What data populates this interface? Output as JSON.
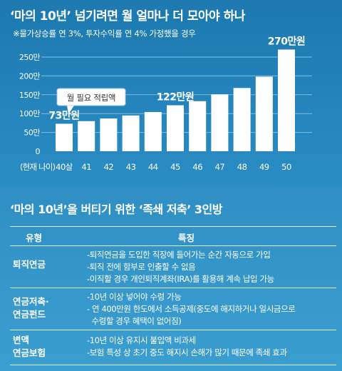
{
  "header": {
    "title": "‘마의 10년’ 넘기려면 월 얼마나 더 모아야 하나",
    "subtitle": "※물가상승률 연 3%, 투자수익률 연 4% 가정했을 경우"
  },
  "chart_data": {
    "type": "bar",
    "x_axis_label": "(현재 나이)",
    "categories": [
      "40살",
      "41",
      "42",
      "43",
      "44",
      "45",
      "46",
      "47",
      "48",
      "49",
      "50"
    ],
    "values": [
      73,
      80,
      87,
      95,
      104,
      122,
      133,
      151,
      168,
      198,
      270
    ],
    "y_ticks": [
      "0",
      "50만",
      "100만",
      "150만",
      "200만",
      "250만"
    ],
    "y_tick_values": [
      0,
      50,
      100,
      150,
      200,
      250
    ],
    "ylim": [
      0,
      290
    ],
    "data_labels": [
      {
        "index": 0,
        "text": "73만원"
      },
      {
        "index": 5,
        "text": "122만원"
      },
      {
        "index": 10,
        "text": "270만원"
      }
    ],
    "callout": "월 필요 적립액",
    "grid": true,
    "colors": {
      "bar": "#ffffff",
      "grid": "#7fbde2"
    }
  },
  "section": {
    "title": "‘마의 10년’을 버티기 위한 ‘족쇄 저축’ 3인방",
    "headers": {
      "type": "유형",
      "features": "특징"
    },
    "rows": [
      {
        "type": [
          "퇴직연금"
        ],
        "features": [
          "-퇴직연금을 도입한 직장에 들어가는 순간 자동으로 가입",
          "-퇴직 전에 함부로 인출할 수 없음",
          "-이직할 경우 개인퇴직계좌(IRA)를 활용해 계속 납입 가능"
        ]
      },
      {
        "type": [
          "연금저축·",
          "연금펀드"
        ],
        "features": [
          "-10년 이상 넣어야 수령 가능",
          "- 연 400만원 한도에서 소득공제(중도에 해지하거나 일시금으로",
          "  수령할 경우 혜택이 없어짐)"
        ]
      },
      {
        "type": [
          "변액",
          "연금보험"
        ],
        "features": [
          "-10년 이상 유지시 불입액 비과세",
          "-보험 특성 상 초기 중도 해지시 손해가 많기 때문에 족쇄 효과"
        ]
      }
    ]
  }
}
